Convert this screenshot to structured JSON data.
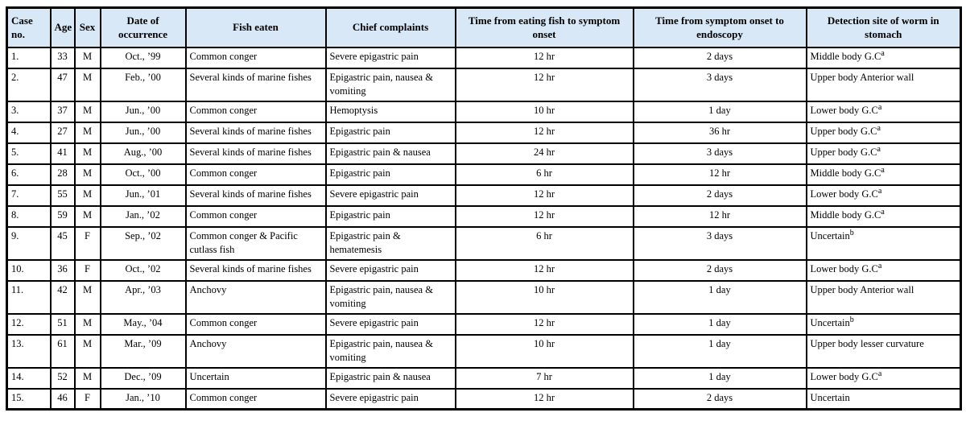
{
  "colors": {
    "header_bg": "#d9e8f7",
    "border": "#000000",
    "text": "#000000"
  },
  "table": {
    "columns": [
      {
        "key": "case_no",
        "name": "case-no",
        "label": "Case no."
      },
      {
        "key": "age",
        "name": "age",
        "label": "Age"
      },
      {
        "key": "sex",
        "name": "sex",
        "label": "Sex"
      },
      {
        "key": "date",
        "name": "date-of-occurrence",
        "label": "Date of occurrence"
      },
      {
        "key": "fish",
        "name": "fish-eaten",
        "label": "Fish eaten"
      },
      {
        "key": "complaints",
        "name": "chief-complaints",
        "label": "Chief complaints"
      },
      {
        "key": "onset",
        "name": "time-to-symptom-onset",
        "label": "Time from eating fish to symptom onset"
      },
      {
        "key": "endoscopy",
        "name": "time-to-endoscopy",
        "label": "Time from symptom onset to endoscopy"
      },
      {
        "key": "detection",
        "name": "detection-site",
        "label": "Detection site of worm in stomach"
      }
    ],
    "rows": [
      {
        "case_no": "1.",
        "age": "33",
        "sex": "M",
        "date": "Oct., ’99",
        "fish": "Common conger",
        "complaints": "Severe epigastric pain",
        "onset": "12 hr",
        "endoscopy": "2 days",
        "detection": "Middle body G.C",
        "detection_sup": "a"
      },
      {
        "case_no": "2.",
        "age": "47",
        "sex": "M",
        "date": "Feb., ’00",
        "fish": "Several kinds of marine fishes",
        "complaints": "Epigastric pain, nausea & vomiting",
        "onset": "12 hr",
        "endoscopy": "3 days",
        "detection": "Upper body Anterior wall",
        "detection_sup": ""
      },
      {
        "case_no": "3.",
        "age": "37",
        "sex": "M",
        "date": "Jun., ’00",
        "fish": "Common conger",
        "complaints": "Hemoptysis",
        "onset": "10 hr",
        "endoscopy": "1 day",
        "detection": "Lower body G.C",
        "detection_sup": "a"
      },
      {
        "case_no": "4.",
        "age": "27",
        "sex": "M",
        "date": "Jun., ’00",
        "fish": "Several kinds of marine fishes",
        "complaints": "Epigastric pain",
        "onset": "12 hr",
        "endoscopy": "36 hr",
        "detection": "Upper body G.C",
        "detection_sup": "a"
      },
      {
        "case_no": "5.",
        "age": "41",
        "sex": "M",
        "date": "Aug., ’00",
        "fish": "Several kinds of marine fishes",
        "complaints": "Epigastric pain & nausea",
        "onset": "24 hr",
        "endoscopy": "3 days",
        "detection": "Upper body G.C",
        "detection_sup": "a"
      },
      {
        "case_no": "6.",
        "age": "28",
        "sex": "M",
        "date": "Oct., ’00",
        "fish": "Common conger",
        "complaints": "Epigastric pain",
        "onset": "6 hr",
        "endoscopy": "12 hr",
        "detection": "Middle body G.C",
        "detection_sup": "a"
      },
      {
        "case_no": "7.",
        "age": "55",
        "sex": "M",
        "date": "Jun., ’01",
        "fish": "Several kinds of marine fishes",
        "complaints": "Severe epigastric pain",
        "onset": "12 hr",
        "endoscopy": "2 days",
        "detection": "Lower body G.C",
        "detection_sup": "a"
      },
      {
        "case_no": "8.",
        "age": "59",
        "sex": "M",
        "date": "Jan., ’02",
        "fish": "Common conger",
        "complaints": "Epigastric pain",
        "onset": "12 hr",
        "endoscopy": "12 hr",
        "detection": "Middle body G.C",
        "detection_sup": "a"
      },
      {
        "case_no": "9.",
        "age": "45",
        "sex": "F",
        "date": "Sep., ’02",
        "fish": "Common conger & Pacific cutlass fish",
        "complaints": "Epigastric pain & hematemesis",
        "onset": "6 hr",
        "endoscopy": "3 days",
        "detection": "Uncertain",
        "detection_sup": "b"
      },
      {
        "case_no": "10.",
        "age": "36",
        "sex": "F",
        "date": "Oct., ’02",
        "fish": "Several kinds of marine fishes",
        "complaints": "Severe epigastric pain",
        "onset": "12 hr",
        "endoscopy": "2 days",
        "detection": "Lower body G.C",
        "detection_sup": "a"
      },
      {
        "case_no": "11.",
        "age": "42",
        "sex": "M",
        "date": "Apr., ’03",
        "fish": "Anchovy",
        "complaints": "Epigastric pain, nausea & vomiting",
        "onset": "10 hr",
        "endoscopy": "1 day",
        "detection": "Upper body Anterior wall",
        "detection_sup": ""
      },
      {
        "case_no": "12.",
        "age": "51",
        "sex": "M",
        "date": "May., ’04",
        "fish": "Common conger",
        "complaints": "Severe epigastric pain",
        "onset": "12 hr",
        "endoscopy": "1 day",
        "detection": "Uncertain",
        "detection_sup": "b"
      },
      {
        "case_no": "13.",
        "age": "61",
        "sex": "M",
        "date": "Mar., ’09",
        "fish": "Anchovy",
        "complaints": "Epigastric pain, nausea & vomiting",
        "onset": "10 hr",
        "endoscopy": "1 day",
        "detection": "Upper body lesser curvature",
        "detection_sup": ""
      },
      {
        "case_no": "14.",
        "age": "52",
        "sex": "M",
        "date": "Dec., ’09",
        "fish": "Uncertain",
        "complaints": "Epigastric pain & nausea",
        "onset": "7 hr",
        "endoscopy": "1 day",
        "detection": "Lower body G.C",
        "detection_sup": "a"
      },
      {
        "case_no": "15.",
        "age": "46",
        "sex": "F",
        "date": "Jan., ’10",
        "fish": "Common conger",
        "complaints": "Severe epigastric pain",
        "onset": "12 hr",
        "endoscopy": "2 days",
        "detection": "Uncertain",
        "detection_sup": ""
      }
    ]
  }
}
